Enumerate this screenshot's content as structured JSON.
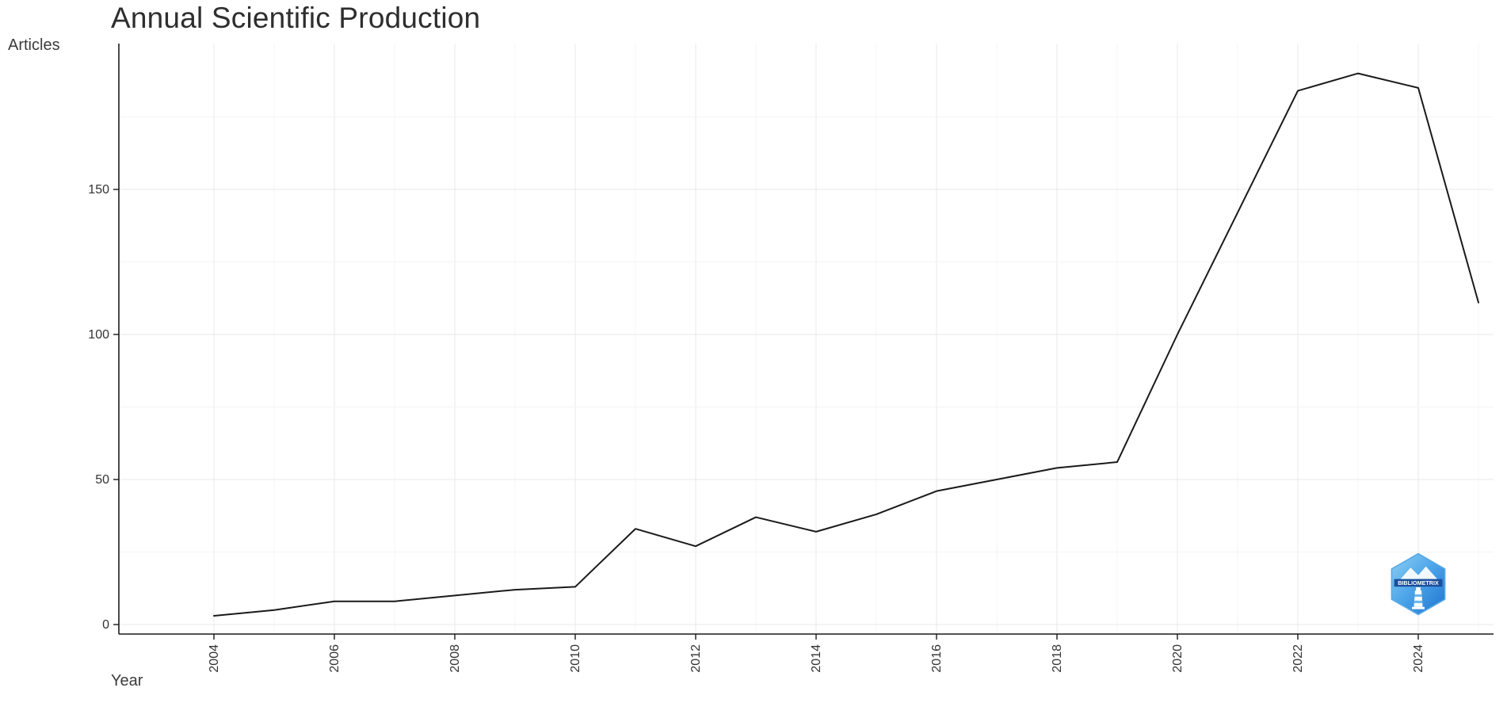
{
  "logo": {
    "text": "BIBLIOMETRIX"
  },
  "chart_data": {
    "type": "line",
    "title": "Annual Scientific Production",
    "xlabel": "Year",
    "ylabel": "Articles",
    "x": [
      2004,
      2005,
      2006,
      2007,
      2008,
      2009,
      2010,
      2011,
      2012,
      2013,
      2014,
      2015,
      2016,
      2017,
      2018,
      2019,
      2020,
      2021,
      2022,
      2023,
      2024,
      2025
    ],
    "values": [
      3,
      5,
      8,
      8,
      10,
      12,
      13,
      33,
      27,
      37,
      32,
      38,
      46,
      50,
      54,
      56,
      100,
      142,
      184,
      190,
      185,
      111
    ],
    "xticks": [
      2004,
      2006,
      2008,
      2010,
      2012,
      2014,
      2016,
      2018,
      2020,
      2022,
      2024
    ],
    "yticks": [
      0,
      50,
      100,
      150
    ],
    "yticks_minor": [
      25,
      75,
      125,
      175
    ],
    "ylim": [
      0,
      195
    ],
    "grid": true,
    "legend": "none",
    "line_color": "#1a1a1a",
    "grid_major_color": "#e8e8e8",
    "grid_minor_color": "#f4f4f4",
    "axis_color": "#1a1a1a",
    "background": "#ffffff"
  }
}
